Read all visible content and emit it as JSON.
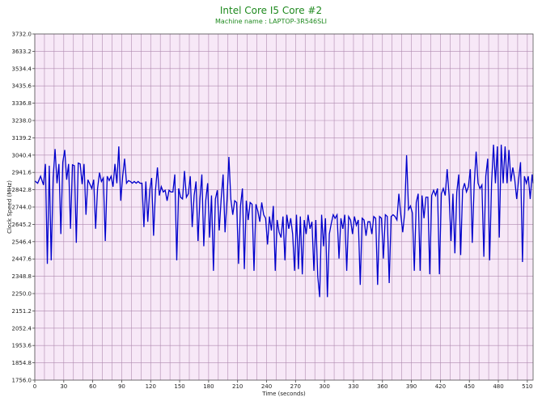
{
  "chart_data": {
    "type": "line",
    "title": "Intel Core I5 Core #2",
    "subtitle": "Machine name : LAPTOP-3R546SLI",
    "xlabel": "Time (seconds)",
    "ylabel": "Clock Speed (MHz)",
    "xlim": [
      0,
      516
    ],
    "ylim": [
      1756.0,
      3732.0
    ],
    "x_ticks": [
      "0",
      "30",
      "60",
      "90",
      "120",
      "150",
      "180",
      "210",
      "240",
      "270",
      "300",
      "330",
      "360",
      "390",
      "420",
      "450",
      "480",
      "510"
    ],
    "y_ticks": [
      "3732.0",
      "3633.2",
      "3534.4",
      "3435.6",
      "3336.8",
      "3238.0",
      "3139.2",
      "3040.4",
      "2941.6",
      "2842.8",
      "2744.0",
      "2645.2",
      "2546.4",
      "2447.6",
      "2348.8",
      "2250.0",
      "2151.2",
      "2052.4",
      "1953.6",
      "1854.8",
      "1756.0"
    ],
    "grid": true,
    "plot_background": "#f7e8f7",
    "grid_color": "#b08ab0",
    "series": [
      {
        "color": "#0000cc",
        "points": [
          [
            0,
            2893
          ],
          [
            3,
            2880
          ],
          [
            6,
            2920
          ],
          [
            9,
            2870
          ],
          [
            11,
            2990
          ],
          [
            13,
            2420
          ],
          [
            15,
            2980
          ],
          [
            17,
            2440
          ],
          [
            19,
            2910
          ],
          [
            21,
            3075
          ],
          [
            23,
            2880
          ],
          [
            25,
            2990
          ],
          [
            27,
            2590
          ],
          [
            29,
            3000
          ],
          [
            31,
            3070
          ],
          [
            33,
            2900
          ],
          [
            35,
            2990
          ],
          [
            37,
            2620
          ],
          [
            39,
            2985
          ],
          [
            41,
            2980
          ],
          [
            43,
            2540
          ],
          [
            45,
            2995
          ],
          [
            47,
            2990
          ],
          [
            49,
            2875
          ],
          [
            51,
            2990
          ],
          [
            53,
            2700
          ],
          [
            55,
            2900
          ],
          [
            57,
            2875
          ],
          [
            59,
            2850
          ],
          [
            61,
            2900
          ],
          [
            63,
            2620
          ],
          [
            65,
            2850
          ],
          [
            67,
            2940
          ],
          [
            69,
            2890
          ],
          [
            71,
            2910
          ],
          [
            73,
            2550
          ],
          [
            75,
            2920
          ],
          [
            77,
            2895
          ],
          [
            79,
            2920
          ],
          [
            81,
            2860
          ],
          [
            83,
            2990
          ],
          [
            85,
            2880
          ],
          [
            87,
            3090
          ],
          [
            89,
            2780
          ],
          [
            91,
            2920
          ],
          [
            93,
            3020
          ],
          [
            95,
            2880
          ],
          [
            97,
            2895
          ],
          [
            99,
            2890
          ],
          [
            101,
            2880
          ],
          [
            103,
            2890
          ],
          [
            105,
            2880
          ],
          [
            107,
            2890
          ],
          [
            109,
            2880
          ],
          [
            111,
            2880
          ],
          [
            113,
            2630
          ],
          [
            115,
            2890
          ],
          [
            117,
            2660
          ],
          [
            119,
            2840
          ],
          [
            121,
            2910
          ],
          [
            123,
            2580
          ],
          [
            125,
            2840
          ],
          [
            127,
            2970
          ],
          [
            129,
            2810
          ],
          [
            131,
            2860
          ],
          [
            133,
            2830
          ],
          [
            135,
            2840
          ],
          [
            137,
            2780
          ],
          [
            139,
            2840
          ],
          [
            141,
            2830
          ],
          [
            143,
            2830
          ],
          [
            145,
            2930
          ],
          [
            147,
            2440
          ],
          [
            149,
            2850
          ],
          [
            151,
            2800
          ],
          [
            153,
            2790
          ],
          [
            155,
            2950
          ],
          [
            157,
            2800
          ],
          [
            159,
            2820
          ],
          [
            161,
            2920
          ],
          [
            163,
            2630
          ],
          [
            165,
            2810
          ],
          [
            167,
            2890
          ],
          [
            169,
            2550
          ],
          [
            171,
            2790
          ],
          [
            173,
            2930
          ],
          [
            175,
            2520
          ],
          [
            177,
            2780
          ],
          [
            179,
            2880
          ],
          [
            181,
            2570
          ],
          [
            183,
            2810
          ],
          [
            185,
            2380
          ],
          [
            187,
            2790
          ],
          [
            189,
            2840
          ],
          [
            191,
            2610
          ],
          [
            193,
            2790
          ],
          [
            195,
            2930
          ],
          [
            197,
            2600
          ],
          [
            199,
            2780
          ],
          [
            201,
            3030
          ],
          [
            203,
            2790
          ],
          [
            205,
            2700
          ],
          [
            207,
            2780
          ],
          [
            209,
            2770
          ],
          [
            211,
            2420
          ],
          [
            213,
            2750
          ],
          [
            215,
            2850
          ],
          [
            217,
            2390
          ],
          [
            219,
            2780
          ],
          [
            221,
            2670
          ],
          [
            223,
            2770
          ],
          [
            225,
            2760
          ],
          [
            227,
            2380
          ],
          [
            229,
            2760
          ],
          [
            231,
            2720
          ],
          [
            233,
            2660
          ],
          [
            235,
            2770
          ],
          [
            237,
            2700
          ],
          [
            239,
            2680
          ],
          [
            241,
            2530
          ],
          [
            243,
            2690
          ],
          [
            245,
            2610
          ],
          [
            247,
            2750
          ],
          [
            249,
            2380
          ],
          [
            251,
            2670
          ],
          [
            253,
            2600
          ],
          [
            255,
            2570
          ],
          [
            257,
            2690
          ],
          [
            259,
            2440
          ],
          [
            261,
            2700
          ],
          [
            263,
            2620
          ],
          [
            265,
            2680
          ],
          [
            267,
            2590
          ],
          [
            269,
            2380
          ],
          [
            271,
            2700
          ],
          [
            273,
            2390
          ],
          [
            275,
            2690
          ],
          [
            277,
            2360
          ],
          [
            279,
            2670
          ],
          [
            281,
            2590
          ],
          [
            283,
            2700
          ],
          [
            285,
            2620
          ],
          [
            287,
            2660
          ],
          [
            289,
            2380
          ],
          [
            291,
            2670
          ],
          [
            293,
            2350
          ],
          [
            295,
            2230
          ],
          [
            297,
            2700
          ],
          [
            299,
            2520
          ],
          [
            301,
            2680
          ],
          [
            303,
            2230
          ],
          [
            305,
            2590
          ],
          [
            307,
            2650
          ],
          [
            309,
            2700
          ],
          [
            311,
            2680
          ],
          [
            313,
            2700
          ],
          [
            315,
            2450
          ],
          [
            317,
            2680
          ],
          [
            319,
            2620
          ],
          [
            321,
            2700
          ],
          [
            323,
            2380
          ],
          [
            325,
            2690
          ],
          [
            327,
            2670
          ],
          [
            329,
            2590
          ],
          [
            331,
            2690
          ],
          [
            333,
            2640
          ],
          [
            335,
            2670
          ],
          [
            337,
            2300
          ],
          [
            339,
            2680
          ],
          [
            341,
            2670
          ],
          [
            343,
            2580
          ],
          [
            345,
            2660
          ],
          [
            347,
            2660
          ],
          [
            349,
            2590
          ],
          [
            351,
            2690
          ],
          [
            353,
            2680
          ],
          [
            355,
            2300
          ],
          [
            357,
            2690
          ],
          [
            359,
            2680
          ],
          [
            361,
            2450
          ],
          [
            363,
            2700
          ],
          [
            365,
            2690
          ],
          [
            367,
            2310
          ],
          [
            369,
            2690
          ],
          [
            371,
            2700
          ],
          [
            373,
            2690
          ],
          [
            375,
            2670
          ],
          [
            377,
            2820
          ],
          [
            379,
            2700
          ],
          [
            381,
            2600
          ],
          [
            383,
            2710
          ],
          [
            385,
            3040
          ],
          [
            387,
            2730
          ],
          [
            389,
            2750
          ],
          [
            391,
            2710
          ],
          [
            393,
            2380
          ],
          [
            395,
            2770
          ],
          [
            397,
            2820
          ],
          [
            399,
            2380
          ],
          [
            401,
            2810
          ],
          [
            403,
            2680
          ],
          [
            405,
            2800
          ],
          [
            407,
            2800
          ],
          [
            409,
            2360
          ],
          [
            411,
            2810
          ],
          [
            413,
            2840
          ],
          [
            415,
            2810
          ],
          [
            417,
            2850
          ],
          [
            419,
            2360
          ],
          [
            421,
            2820
          ],
          [
            423,
            2850
          ],
          [
            425,
            2810
          ],
          [
            427,
            2960
          ],
          [
            429,
            2810
          ],
          [
            431,
            2550
          ],
          [
            433,
            2820
          ],
          [
            435,
            2480
          ],
          [
            437,
            2830
          ],
          [
            439,
            2930
          ],
          [
            441,
            2470
          ],
          [
            443,
            2840
          ],
          [
            445,
            2880
          ],
          [
            447,
            2830
          ],
          [
            449,
            2860
          ],
          [
            451,
            2960
          ],
          [
            453,
            2540
          ],
          [
            455,
            2870
          ],
          [
            457,
            3060
          ],
          [
            459,
            2880
          ],
          [
            461,
            2850
          ],
          [
            463,
            2870
          ],
          [
            465,
            2460
          ],
          [
            467,
            2920
          ],
          [
            469,
            3020
          ],
          [
            471,
            2440
          ],
          [
            473,
            2880
          ],
          [
            475,
            3100
          ],
          [
            477,
            2880
          ],
          [
            479,
            3090
          ],
          [
            481,
            2570
          ],
          [
            483,
            3100
          ],
          [
            485,
            2880
          ],
          [
            487,
            3090
          ],
          [
            489,
            2880
          ],
          [
            491,
            3070
          ],
          [
            493,
            2890
          ],
          [
            495,
            2970
          ],
          [
            497,
            2900
          ],
          [
            499,
            2790
          ],
          [
            501,
            2900
          ],
          [
            503,
            3000
          ],
          [
            505,
            2430
          ],
          [
            507,
            2920
          ],
          [
            509,
            2880
          ],
          [
            511,
            2920
          ],
          [
            513,
            2790
          ],
          [
            515,
            2930
          ],
          [
            516,
            2880
          ]
        ]
      }
    ]
  }
}
